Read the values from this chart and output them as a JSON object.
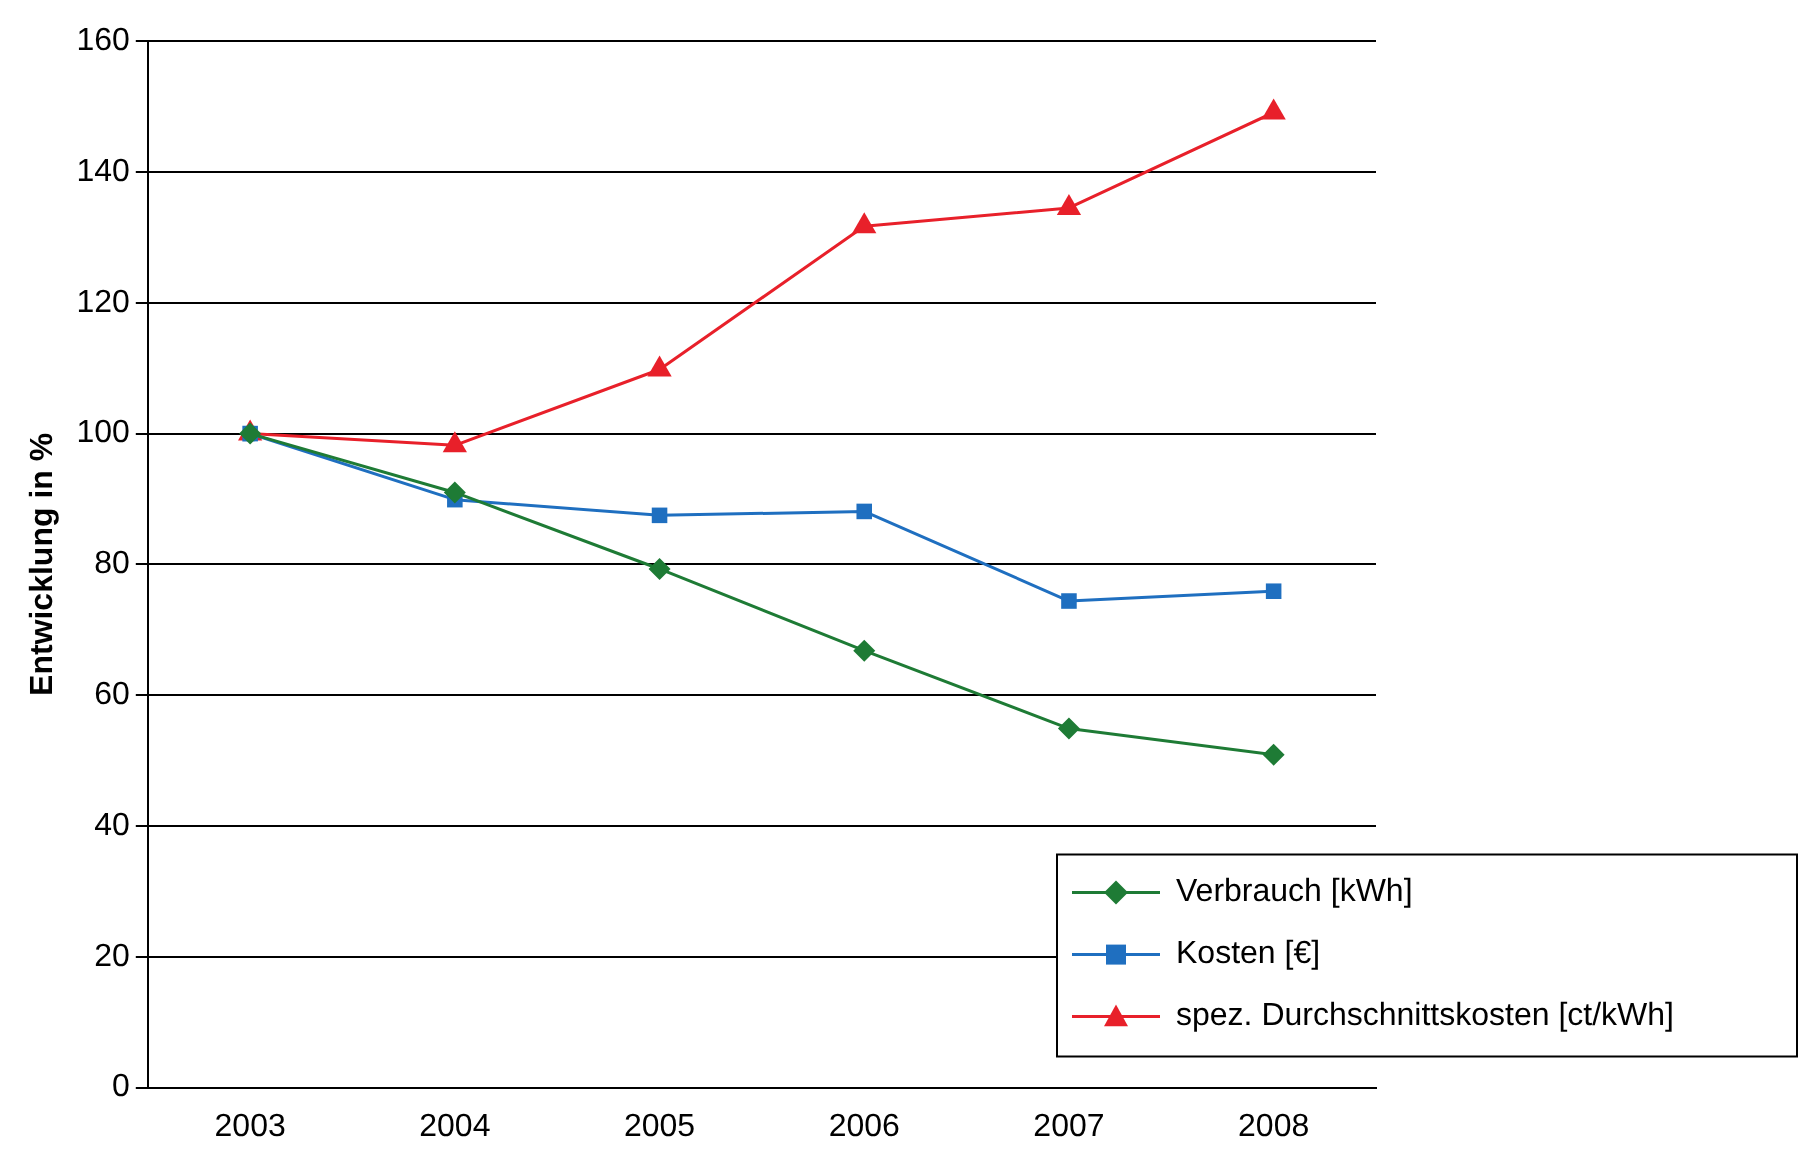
{
  "chart_data": {
    "type": "line",
    "ylabel": "Entwicklung in %",
    "categories": [
      "2003",
      "2004",
      "2005",
      "2006",
      "2007",
      "2008"
    ],
    "series": [
      {
        "name": "Verbrauch [kWh]",
        "color": "#1e7b35",
        "marker": "diamond",
        "values": [
          100,
          91,
          79.3,
          66.8,
          54.9,
          50.9
        ]
      },
      {
        "name": "Kosten [€]",
        "color": "#1f6fc0",
        "marker": "square",
        "values": [
          100,
          89.9,
          87.5,
          88.1,
          74.4,
          75.9
        ]
      },
      {
        "name": "spez. Durchschnittskosten [ct/kWh]",
        "color": "#e8202a",
        "marker": "triangle",
        "values": [
          100,
          98.2,
          109.8,
          131.7,
          134.5,
          149.1
        ]
      }
    ],
    "ylim": [
      0,
      160
    ],
    "yticks": [
      0,
      20,
      40,
      60,
      80,
      100,
      120,
      140,
      160
    ],
    "grid": "y",
    "legend": "bottom right"
  }
}
